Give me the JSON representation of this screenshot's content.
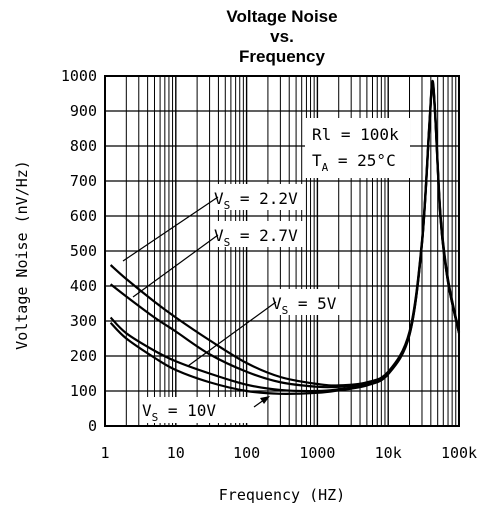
{
  "chart_data": {
    "type": "line",
    "title": [
      "Voltage Noise",
      "vs.",
      "Frequency"
    ],
    "xlabel": "Frequency (HZ)",
    "ylabel": "Voltage Noise (nV/Hz)",
    "x_scale": "log",
    "xlim": [
      1,
      100000
    ],
    "ylim": [
      0,
      1000
    ],
    "grid": true,
    "x_ticks": [
      {
        "value": 1,
        "label": "1"
      },
      {
        "value": 10,
        "label": "10"
      },
      {
        "value": 100,
        "label": "100"
      },
      {
        "value": 1000,
        "label": "1000"
      },
      {
        "value": 10000,
        "label": "10k"
      },
      {
        "value": 100000,
        "label": "100k"
      }
    ],
    "y_ticks": [
      0,
      100,
      200,
      300,
      400,
      500,
      600,
      700,
      800,
      900,
      1000
    ],
    "conditions": {
      "rl": "Rl = 100k",
      "ta_prefix": "T",
      "ta_sub": "A",
      "ta_suffix": " = 25°C"
    },
    "series": [
      {
        "name": "VS = 2.2V",
        "label_prefix": "V",
        "label_sub": "S",
        "label_suffix": " = 2.2V",
        "x": [
          1.2,
          2,
          5,
          10,
          30,
          100,
          300,
          1000,
          2000,
          5000,
          10000,
          20000,
          30000,
          38000,
          42000,
          46000,
          55000,
          70000,
          100000
        ],
        "y": [
          460,
          420,
          355,
          310,
          245,
          180,
          140,
          120,
          116,
          125,
          155,
          270,
          530,
          860,
          985,
          900,
          600,
          420,
          270
        ]
      },
      {
        "name": "VS = 2.7V",
        "label_prefix": "V",
        "label_sub": "S",
        "label_suffix": " = 2.7V",
        "x": [
          1.2,
          2,
          5,
          10,
          30,
          100,
          300,
          1000,
          2000,
          5000,
          10000,
          20000,
          30000,
          38000,
          42000,
          46000,
          55000,
          70000,
          100000
        ],
        "y": [
          405,
          370,
          310,
          270,
          205,
          155,
          125,
          112,
          112,
          122,
          152,
          265,
          525,
          855,
          980,
          895,
          595,
          415,
          268
        ]
      },
      {
        "name": "VS = 5V",
        "label_prefix": "V",
        "label_sub": "S",
        "label_suffix": " = 5V",
        "x": [
          1.2,
          2,
          5,
          10,
          30,
          100,
          300,
          1000,
          2000,
          5000,
          10000,
          20000,
          30000,
          38000,
          42000,
          46000,
          55000,
          70000,
          100000
        ],
        "y": [
          310,
          265,
          215,
          185,
          150,
          118,
          103,
          100,
          105,
          118,
          150,
          262,
          522,
          850,
          978,
          890,
          590,
          412,
          266
        ]
      },
      {
        "name": "VS = 10V",
        "label_prefix": "V",
        "label_sub": "S",
        "label_suffix": " = 10V",
        "x": [
          1.2,
          2,
          5,
          10,
          30,
          100,
          300,
          1000,
          2000,
          5000,
          10000,
          20000,
          30000,
          38000,
          42000,
          46000,
          55000,
          70000,
          100000
        ],
        "y": [
          295,
          250,
          195,
          160,
          125,
          100,
          92,
          95,
          102,
          116,
          148,
          260,
          520,
          848,
          975,
          888,
          588,
          410,
          265
        ]
      }
    ]
  }
}
